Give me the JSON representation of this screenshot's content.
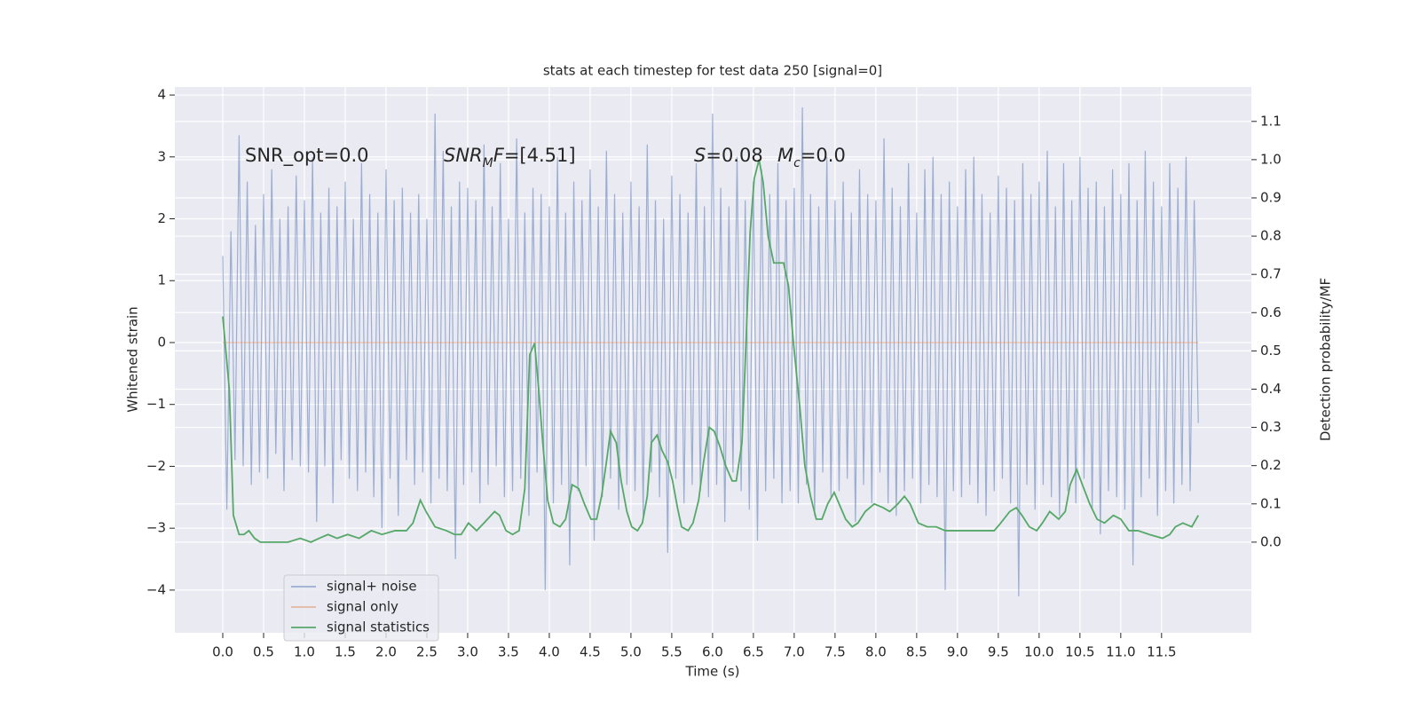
{
  "chart_data": {
    "type": "line",
    "title": "stats at each timestep for test data 250 [signal=0]",
    "xlabel": "Time (s)",
    "ylabel": "Whitened strain",
    "y2label": "Detection probability/MF",
    "xlim": [
      -0.587,
      12.6
    ],
    "ylim": [
      -4.69,
      4.13
    ],
    "y2lim": [
      -0.237,
      1.19
    ],
    "grid": true,
    "legend": "lower left",
    "xticks": [
      {
        "value": 0,
        "label": "0.0"
      },
      0.5,
      {
        "value": 1,
        "label": "1.0"
      },
      1.5,
      {
        "value": 2,
        "label": "2.0"
      },
      2.5,
      {
        "value": 3,
        "label": "3.0"
      },
      3.5,
      {
        "value": 4,
        "label": "4.0"
      },
      4.5,
      {
        "value": 5,
        "label": "5.0"
      },
      5.5,
      {
        "value": 6,
        "label": "6.0"
      },
      6.5,
      {
        "value": 7,
        "label": "7.0"
      },
      7.5,
      {
        "value": 8,
        "label": "8.0"
      },
      8.5,
      {
        "value": 9,
        "label": "9.0"
      },
      9.5,
      {
        "value": 10,
        "label": "10.0"
      },
      10.5,
      {
        "value": 11,
        "label": "11.0"
      },
      11.5
    ],
    "yticks": [
      {
        "value": -4,
        "label": "−4"
      },
      {
        "value": -3,
        "label": "−3"
      },
      {
        "value": -2,
        "label": "−2"
      },
      {
        "value": -1,
        "label": "−1"
      },
      0,
      1,
      2,
      3,
      4
    ],
    "y2ticks": [
      {
        "value": 0,
        "label": "0.0"
      },
      0.1,
      0.2,
      0.3,
      0.4,
      0.5,
      0.6,
      0.7,
      0.8,
      0.9,
      {
        "value": 1,
        "label": "1.0"
      },
      1.1
    ],
    "annotations": [
      {
        "segments": [
          {
            "text": "SNR_opt=0.0"
          }
        ]
      },
      {
        "segments": [
          {
            "text": "SNR",
            "style": "italic"
          },
          {
            "text": "M",
            "style": "sub"
          },
          {
            "text": "F",
            "style": "italic"
          },
          {
            "text": "=[4.51]"
          }
        ]
      },
      {
        "segments": [
          {
            "text": "S",
            "style": "italic"
          },
          {
            "text": "=0.08"
          }
        ]
      },
      {
        "segments": [
          {
            "text": "M",
            "style": "italic"
          },
          {
            "text": "c",
            "style": "sub"
          },
          {
            "text": "=0.0"
          }
        ]
      }
    ],
    "series": [
      {
        "name": "signal+ noise",
        "color": "#4c72b0",
        "alpha": 0.5,
        "x": [
          0,
          0.05,
          0.1,
          0.15,
          0.2,
          0.25,
          0.3,
          0.35,
          0.4,
          0.45,
          0.5,
          0.55,
          0.6,
          0.65,
          0.7,
          0.75,
          0.8,
          0.85,
          0.9,
          0.95,
          1,
          1.05,
          1.1,
          1.15,
          1.2,
          1.25,
          1.3,
          1.35,
          1.4,
          1.45,
          1.5,
          1.55,
          1.6,
          1.65,
          1.7,
          1.75,
          1.8,
          1.85,
          1.9,
          1.95,
          2,
          2.05,
          2.1,
          2.15,
          2.2,
          2.25,
          2.3,
          2.35,
          2.4,
          2.45,
          2.5,
          2.55,
          2.6,
          2.65,
          2.7,
          2.75,
          2.8,
          2.85,
          2.9,
          2.95,
          3,
          3.05,
          3.1,
          3.15,
          3.2,
          3.25,
          3.3,
          3.35,
          3.4,
          3.45,
          3.5,
          3.55,
          3.6,
          3.65,
          3.7,
          3.75,
          3.8,
          3.85,
          3.9,
          3.95,
          4,
          4.05,
          4.1,
          4.15,
          4.2,
          4.25,
          4.3,
          4.35,
          4.4,
          4.45,
          4.5,
          4.55,
          4.6,
          4.65,
          4.7,
          4.75,
          4.8,
          4.85,
          4.9,
          4.95,
          5,
          5.05,
          5.1,
          5.15,
          5.2,
          5.25,
          5.3,
          5.35,
          5.4,
          5.45,
          5.5,
          5.55,
          5.6,
          5.65,
          5.7,
          5.75,
          5.8,
          5.85,
          5.9,
          5.95,
          6,
          6.05,
          6.1,
          6.15,
          6.2,
          6.25,
          6.3,
          6.35,
          6.4,
          6.45,
          6.5,
          6.55,
          6.6,
          6.65,
          6.7,
          6.75,
          6.8,
          6.85,
          6.9,
          6.95,
          7,
          7.05,
          7.1,
          7.15,
          7.2,
          7.25,
          7.3,
          7.35,
          7.4,
          7.45,
          7.5,
          7.55,
          7.6,
          7.65,
          7.7,
          7.75,
          7.8,
          7.85,
          7.9,
          7.95,
          8,
          8.05,
          8.1,
          8.15,
          8.2,
          8.25,
          8.3,
          8.35,
          8.4,
          8.45,
          8.5,
          8.55,
          8.6,
          8.65,
          8.7,
          8.75,
          8.8,
          8.85,
          8.9,
          8.95,
          9,
          9.05,
          9.1,
          9.15,
          9.2,
          9.25,
          9.3,
          9.35,
          9.4,
          9.45,
          9.5,
          9.55,
          9.6,
          9.65,
          9.7,
          9.75,
          9.8,
          9.85,
          9.9,
          9.95,
          10,
          10.05,
          10.1,
          10.15,
          10.2,
          10.25,
          10.3,
          10.35,
          10.4,
          10.45,
          10.5,
          10.55,
          10.6,
          10.65,
          10.7,
          10.75,
          10.8,
          10.85,
          10.9,
          10.95,
          11,
          11.05,
          11.1,
          11.15,
          11.2,
          11.25,
          11.3,
          11.35,
          11.4,
          11.45,
          11.5,
          11.55,
          11.6,
          11.65,
          11.7,
          11.75,
          11.8,
          11.85,
          11.9,
          11.95
        ],
        "values": [
          1.4,
          -2.7,
          1.8,
          -1.9,
          3.35,
          -2.0,
          2.6,
          -2.3,
          1.9,
          -2.1,
          2.4,
          -2.2,
          2.8,
          -1.8,
          2.0,
          -2.4,
          2.2,
          -1.9,
          2.7,
          -2.0,
          2.3,
          -2.1,
          3.0,
          -2.9,
          2.1,
          -2.0,
          2.5,
          -2.6,
          2.2,
          -1.9,
          2.6,
          -2.2,
          2.0,
          -2.4,
          2.9,
          -2.1,
          2.4,
          -2.5,
          2.1,
          -3.0,
          2.8,
          -2.2,
          2.3,
          -2.8,
          2.5,
          -1.9,
          2.1,
          -2.3,
          2.4,
          -2.1,
          2.0,
          -2.6,
          3.7,
          -2.2,
          3.1,
          -2.4,
          2.2,
          -3.5,
          2.6,
          -2.3,
          2.5,
          -2.1,
          2.3,
          -2.6,
          3.2,
          -2.3,
          2.2,
          -2.0,
          2.9,
          -2.5,
          2.0,
          -2.4,
          3.3,
          -2.2,
          2.1,
          -2.8,
          2.5,
          -2.1,
          2.4,
          -4.0,
          2.2,
          -2.6,
          3.0,
          -2.3,
          2.1,
          -3.6,
          2.6,
          -2.4,
          2.3,
          -2.0,
          2.8,
          -3.2,
          2.2,
          -2.5,
          3.1,
          -2.2,
          2.4,
          -2.7,
          2.1,
          -2.3,
          2.6,
          -2.4,
          2.2,
          -2.8,
          3.2,
          -2.1,
          2.3,
          -2.5,
          2.0,
          -3.4,
          2.7,
          -2.2,
          2.4,
          -2.6,
          2.1,
          -2.3,
          2.9,
          -2.4,
          2.2,
          -2.5,
          3.7,
          -2.3,
          2.5,
          -2.9,
          2.2,
          -2.1,
          3.0,
          -2.4,
          2.3,
          -2.7,
          2.6,
          -3.2,
          2.8,
          -2.4,
          2.4,
          -2.2,
          2.9,
          -2.6,
          2.3,
          -2.4,
          2.5,
          -2.6,
          3.8,
          -2.3,
          2.4,
          -2.8,
          2.2,
          -2.1,
          3.0,
          -2.5,
          2.3,
          -2.4,
          2.6,
          -2.2,
          2.1,
          -2.9,
          2.8,
          -2.3,
          2.4,
          -2.6,
          2.3,
          -2.1,
          3.3,
          -2.6,
          2.5,
          -2.8,
          2.2,
          -2.4,
          2.9,
          -2.2,
          2.1,
          -2.6,
          2.8,
          -2.3,
          3.0,
          -2.5,
          2.4,
          -4.0,
          2.6,
          -2.4,
          2.2,
          -2.5,
          2.8,
          -2.3,
          3.0,
          -2.6,
          2.4,
          -2.8,
          2.1,
          -2.4,
          2.7,
          -2.2,
          2.5,
          -2.6,
          2.3,
          -4.1,
          2.9,
          -2.3,
          2.4,
          -2.7,
          2.6,
          -2.3,
          3.1,
          -2.5,
          2.2,
          -2.8,
          2.9,
          -2.4,
          2.3,
          -2.6,
          3.0,
          -2.2,
          2.5,
          -2.7,
          2.6,
          -3.1,
          2.2,
          -2.4,
          2.8,
          -2.5,
          2.4,
          -2.7,
          2.9,
          -3.6,
          2.3,
          -2.5,
          3.1,
          -2.2,
          2.6,
          -2.8,
          2.2,
          -2.4,
          2.9,
          -2.6,
          2.5,
          -2.3,
          3.0,
          -2.4,
          2.3,
          -1.3
        ]
      },
      {
        "name": "signal only",
        "color": "#dd8452",
        "alpha": 0.5,
        "x": [
          0,
          11.95
        ],
        "values": [
          0,
          0
        ]
      },
      {
        "name": "signal statistics",
        "color": "#55a868",
        "alpha": 1,
        "axis": "y2",
        "x": [
          0,
          0.08,
          0.13,
          0.2,
          0.26,
          0.32,
          0.39,
          0.46,
          0.59,
          0.7,
          0.8,
          0.95,
          1.08,
          1.18,
          1.29,
          1.4,
          1.53,
          1.67,
          1.82,
          1.95,
          2.11,
          2.25,
          2.33,
          2.42,
          2.49,
          2.6,
          2.74,
          2.84,
          2.92,
          3.01,
          3.11,
          3.2,
          3.33,
          3.39,
          3.47,
          3.55,
          3.63,
          3.7,
          3.76,
          3.82,
          3.87,
          3.92,
          3.98,
          4.05,
          4.13,
          4.2,
          4.28,
          4.36,
          4.43,
          4.51,
          4.58,
          4.64,
          4.7,
          4.75,
          4.82,
          4.88,
          4.95,
          5.01,
          5.08,
          5.14,
          5.2,
          5.25,
          5.32,
          5.38,
          5.45,
          5.51,
          5.57,
          5.62,
          5.7,
          5.76,
          5.83,
          5.89,
          5.96,
          6.02,
          6.09,
          6.16,
          6.24,
          6.29,
          6.36,
          6.4,
          6.46,
          6.51,
          6.57,
          6.62,
          6.68,
          6.75,
          6.82,
          6.87,
          6.93,
          7.0,
          7.07,
          7.13,
          7.2,
          7.27,
          7.34,
          7.41,
          7.49,
          7.55,
          7.63,
          7.71,
          7.78,
          7.87,
          7.98,
          8.09,
          8.17,
          8.27,
          8.35,
          8.42,
          8.52,
          8.63,
          8.74,
          8.85,
          8.96,
          9.12,
          9.28,
          9.45,
          9.53,
          9.64,
          9.72,
          9.79,
          9.88,
          9.97,
          10.04,
          10.13,
          10.24,
          10.32,
          10.38,
          10.46,
          10.53,
          10.62,
          10.71,
          10.8,
          10.91,
          11.0,
          11.1,
          11.21,
          11.35,
          11.51,
          11.6,
          11.67,
          11.76,
          11.87,
          11.95
        ],
        "values": [
          0.59,
          0.4,
          0.07,
          0.02,
          0.02,
          0.03,
          0.01,
          0.0,
          0.0,
          0.0,
          0.0,
          0.01,
          0.0,
          0.01,
          0.02,
          0.01,
          0.02,
          0.01,
          0.03,
          0.02,
          0.03,
          0.03,
          0.05,
          0.11,
          0.08,
          0.04,
          0.03,
          0.02,
          0.02,
          0.05,
          0.03,
          0.05,
          0.08,
          0.07,
          0.03,
          0.02,
          0.03,
          0.14,
          0.49,
          0.52,
          0.4,
          0.26,
          0.11,
          0.05,
          0.04,
          0.06,
          0.15,
          0.14,
          0.1,
          0.06,
          0.06,
          0.12,
          0.21,
          0.29,
          0.26,
          0.16,
          0.08,
          0.04,
          0.03,
          0.05,
          0.12,
          0.26,
          0.28,
          0.24,
          0.21,
          0.16,
          0.09,
          0.04,
          0.03,
          0.05,
          0.11,
          0.21,
          0.3,
          0.29,
          0.25,
          0.2,
          0.16,
          0.16,
          0.26,
          0.47,
          0.81,
          0.95,
          1.0,
          0.94,
          0.8,
          0.73,
          0.73,
          0.73,
          0.67,
          0.5,
          0.35,
          0.2,
          0.12,
          0.06,
          0.06,
          0.1,
          0.13,
          0.1,
          0.06,
          0.04,
          0.05,
          0.08,
          0.1,
          0.09,
          0.08,
          0.1,
          0.12,
          0.1,
          0.05,
          0.04,
          0.04,
          0.03,
          0.03,
          0.03,
          0.03,
          0.03,
          0.05,
          0.08,
          0.09,
          0.07,
          0.04,
          0.03,
          0.05,
          0.08,
          0.06,
          0.08,
          0.15,
          0.19,
          0.15,
          0.1,
          0.06,
          0.05,
          0.07,
          0.06,
          0.03,
          0.03,
          0.02,
          0.01,
          0.02,
          0.04,
          0.05,
          0.04,
          0.07
        ]
      }
    ]
  }
}
